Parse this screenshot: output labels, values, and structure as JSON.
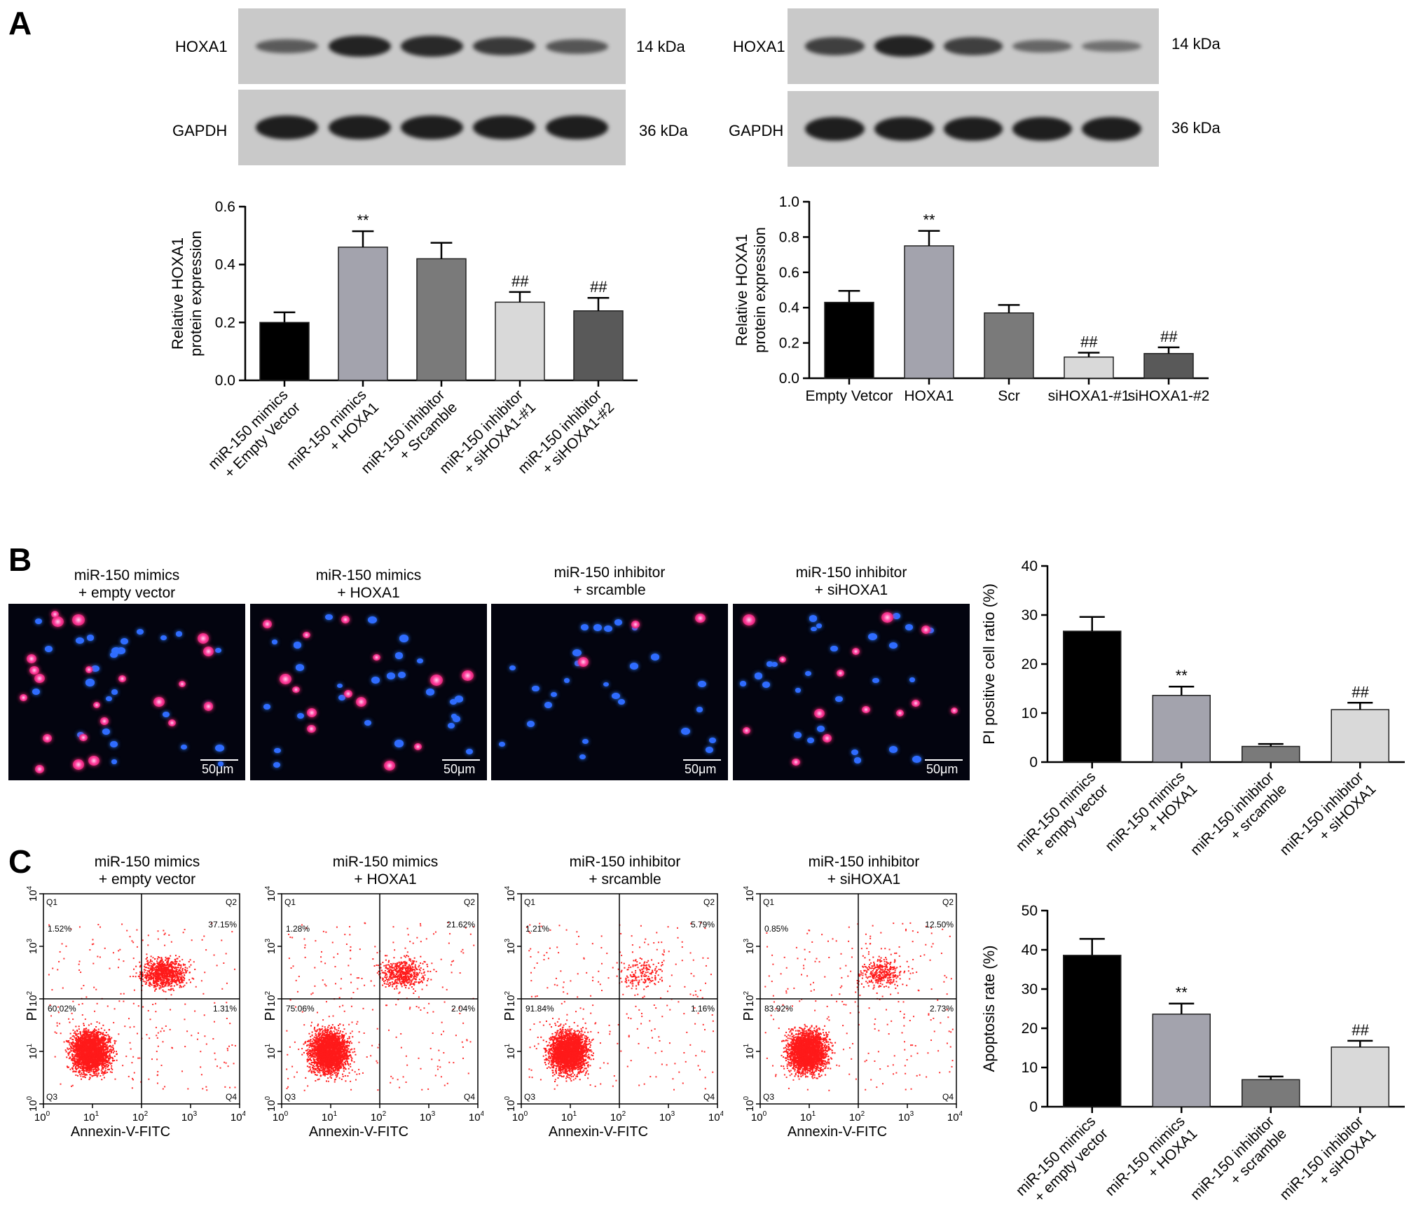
{
  "panels": {
    "A": "A",
    "B": "B",
    "C": "C"
  },
  "western": [
    {
      "rows": [
        {
          "protein": "HOXA1",
          "kda": "14 kDa",
          "intensity": [
            0.45,
            0.95,
            0.9,
            0.75,
            0.5
          ]
        },
        {
          "protein": "GAPDH",
          "kda": "36 kDa",
          "intensity": [
            1,
            1,
            1,
            1,
            1
          ]
        }
      ]
    },
    {
      "rows": [
        {
          "protein": "HOXA1",
          "kda": "14 kDa",
          "intensity": [
            0.7,
            0.95,
            0.7,
            0.35,
            0.25
          ]
        },
        {
          "protein": "GAPDH",
          "kda": "36 kDa",
          "intensity": [
            1,
            1,
            1,
            1,
            1
          ]
        }
      ]
    }
  ],
  "chart_data": [
    {
      "id": "a-left",
      "type": "bar",
      "ylabel": [
        "Relative HOXA1",
        "protein expression"
      ],
      "ylim": [
        0,
        0.6
      ],
      "yticks": [
        "0.0",
        "0.2",
        "0.4",
        "0.6"
      ],
      "tick_values": [
        0,
        0.2,
        0.4,
        0.6
      ],
      "categories": [
        "miR-150 mimics\n+ Empty Vector",
        "miR-150 mimics\n+ HOXA1",
        "miR-150 inhibitor\n+ Srcamble",
        "miR-150 inhibitor\n+ siHOXA1-#1",
        "miR-150 inhibitor\n+ siHOXA1-#2"
      ],
      "values": [
        0.2,
        0.46,
        0.42,
        0.27,
        0.24
      ],
      "errors": [
        0.035,
        0.055,
        0.055,
        0.035,
        0.045
      ],
      "colors": [
        "#000000",
        "#a3a3ad",
        "#7a7a7a",
        "#d9d9d9",
        "#595959"
      ],
      "annotations": [
        "",
        "**",
        "",
        "##",
        "##"
      ],
      "rotated": true
    },
    {
      "id": "a-right",
      "type": "bar",
      "ylabel": [
        "Relative HOXA1",
        "protein expression"
      ],
      "ylim": [
        0,
        1.0
      ],
      "yticks": [
        "0.0",
        "0.2",
        "0.4",
        "0.6",
        "0.8",
        "1.0"
      ],
      "tick_values": [
        0,
        0.2,
        0.4,
        0.6,
        0.8,
        1.0
      ],
      "categories": [
        "Empty Vetcor",
        "HOXA1",
        "Scr",
        "siHOXA1-#1",
        "siHOXA1-#2"
      ],
      "values": [
        0.43,
        0.75,
        0.37,
        0.12,
        0.14
      ],
      "errors": [
        0.065,
        0.085,
        0.045,
        0.025,
        0.035
      ],
      "colors": [
        "#000000",
        "#a3a3ad",
        "#7a7a7a",
        "#d9d9d9",
        "#595959"
      ],
      "annotations": [
        "",
        "**",
        "",
        "##",
        "##"
      ],
      "rotated": false
    },
    {
      "id": "b-bar",
      "type": "bar",
      "ylabel": [
        "PI positive cell ratio (%)"
      ],
      "ylim": [
        0,
        40
      ],
      "yticks": [
        "0",
        "10",
        "20",
        "30",
        "40"
      ],
      "tick_values": [
        0,
        10,
        20,
        30,
        40
      ],
      "categories": [
        "miR-150 mimics\n+ empty vector",
        "miR-150 mimics\n+ HOXA1",
        "miR-150 inhibitor\n+ srcamble",
        "miR-150 inhibitor\n+ siHOXA1"
      ],
      "values": [
        26.7,
        13.6,
        3.2,
        10.7
      ],
      "errors": [
        2.9,
        1.8,
        0.5,
        1.4
      ],
      "colors": [
        "#000000",
        "#a3a3ad",
        "#7a7a7a",
        "#d9d9d9"
      ],
      "annotations": [
        "",
        "**",
        "",
        "##"
      ],
      "rotated": true
    },
    {
      "id": "c-bar",
      "type": "bar",
      "ylabel": [
        "Apoptosis rate (%)"
      ],
      "ylim": [
        0,
        50
      ],
      "yticks": [
        "0",
        "10",
        "20",
        "30",
        "40",
        "50"
      ],
      "tick_values": [
        0,
        10,
        20,
        30,
        40,
        50
      ],
      "categories": [
        "miR-150 mimics\n+ empty vector",
        "miR-150 mimics\n+ HOXA1",
        "miR-150 inhibitor\n+ scramble",
        "miR-150 inhibitor\n+ siHOXA1"
      ],
      "values": [
        38.6,
        23.6,
        6.9,
        15.2
      ],
      "errors": [
        4.2,
        2.7,
        0.8,
        1.6
      ],
      "colors": [
        "#000000",
        "#a3a3ad",
        "#7a7a7a",
        "#d9d9d9"
      ],
      "annotations": [
        "",
        "**",
        "",
        "##"
      ],
      "rotated": true
    }
  ],
  "fluorescence": {
    "titles": [
      "miR-150 mimics\n+ empty vector",
      "miR-150 mimics\n+ HOXA1",
      "miR-150 inhibitor\n+ srcamble",
      "miR-150 inhibitor\n+ siHOXA1"
    ],
    "scale": "50μm"
  },
  "flow": {
    "titles": [
      "miR-150 mimics\n+ empty vector",
      "miR-150 mimics\n+ HOXA1",
      "miR-150 inhibitor\n+ srcamble",
      "miR-150 inhibitor\n+ siHOXA1"
    ],
    "xlabel": "Annexin-V-FITC",
    "ylabel": "PI",
    "quadrant_names": [
      "Q1",
      "Q2",
      "Q3",
      "Q4"
    ],
    "decade_ticks": [
      "0",
      "1",
      "2",
      "3",
      "4"
    ],
    "quadrants": [
      {
        "q1": "1.52%",
        "q2": "37.15%",
        "q3": "60.02%",
        "q4": "1.31%"
      },
      {
        "q1": "1.28%",
        "q2": "21.62%",
        "q3": "75.06%",
        "q4": "2.04%"
      },
      {
        "q1": "1.21%",
        "q2": "5.79%",
        "q3": "91.84%",
        "q4": "1.16%"
      },
      {
        "q1": "0.85%",
        "q2": "12.50%",
        "q3": "83.92%",
        "q4": "2.73%"
      }
    ]
  }
}
